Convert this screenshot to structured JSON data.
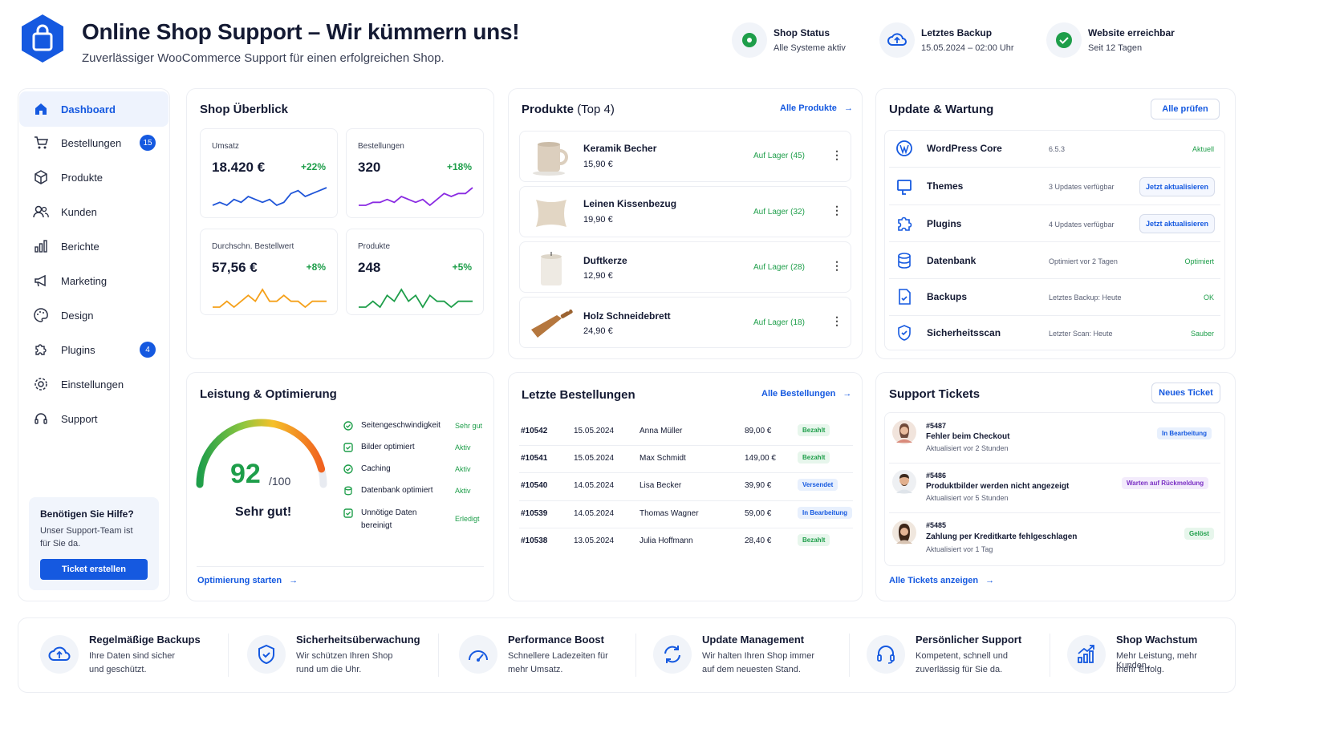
{
  "header": {
    "title": "Online Shop Support – Wir kümmern uns!",
    "subtitle": "Zuverlässiger WooCommerce Support für einen erfolgreichen Shop.",
    "status": [
      {
        "title": "Shop Status",
        "text": "Alle Systeme aktiv",
        "icon": "check-dot-icon"
      },
      {
        "title": "Letztes Backup",
        "text": "15.05.2024 – 02:00 Uhr",
        "icon": "cloud-icon"
      },
      {
        "title": "Website erreichbar",
        "text": "Seit 12 Tagen",
        "icon": "check-circle-icon"
      }
    ]
  },
  "sidebar": {
    "items": [
      {
        "label": "Dashboard",
        "icon": "home-icon",
        "active": true
      },
      {
        "label": "Bestellungen",
        "icon": "cart-icon",
        "badge": "15"
      },
      {
        "label": "Produkte",
        "icon": "box-icon"
      },
      {
        "label": "Kunden",
        "icon": "users-icon"
      },
      {
        "label": "Berichte",
        "icon": "bar-chart-icon"
      },
      {
        "label": "Marketing",
        "icon": "megaphone-icon"
      },
      {
        "label": "Design",
        "icon": "palette-icon"
      },
      {
        "label": "Plugins",
        "icon": "puzzle-icon",
        "badge": "4"
      },
      {
        "label": "Einstellungen",
        "icon": "gear-icon"
      },
      {
        "label": "Support",
        "icon": "headset-icon"
      }
    ],
    "help": {
      "title": "Benötigen Sie Hilfe?",
      "text1": "Unser Support-Team ist",
      "text2": "für Sie da.",
      "button": "Ticket erstellen"
    }
  },
  "overview": {
    "title": "Shop Überblick",
    "kpis": [
      {
        "label": "Umsatz",
        "value": "18.420 €",
        "delta": "+22%",
        "color": "#1f55d8",
        "trend": [
          4,
          5,
          4,
          6,
          5,
          7,
          6,
          5,
          6,
          4,
          5,
          8,
          9,
          7,
          8,
          9,
          10
        ]
      },
      {
        "label": "Bestellungen",
        "value": "320",
        "delta": "+18%",
        "color": "#8a2be2",
        "trend": [
          4,
          4,
          5,
          5,
          6,
          5,
          7,
          6,
          5,
          6,
          4,
          6,
          8,
          7,
          8,
          8,
          10
        ]
      },
      {
        "label": "Durchschn. Bestellwert",
        "value": "57,56 €",
        "delta": "+8%",
        "color": "#f5a019",
        "trend": [
          5,
          5,
          6,
          5,
          6,
          7,
          6,
          8,
          6,
          6,
          7,
          6,
          6,
          5,
          6,
          6,
          6
        ]
      },
      {
        "label": "Produkte",
        "value": "248",
        "delta": "+5%",
        "color": "#1e9e4a",
        "trend": [
          5,
          5,
          6,
          5,
          7,
          6,
          8,
          6,
          7,
          5,
          7,
          6,
          6,
          5,
          6,
          6,
          6
        ]
      }
    ]
  },
  "products": {
    "title": "Produkte",
    "title_suffix": "(Top 4)",
    "link": "Alle Produkte",
    "items": [
      {
        "name": "Keramik Becher",
        "price": "15,90 €",
        "stock": "Auf Lager (45)"
      },
      {
        "name": "Leinen Kissenbezug",
        "price": "19,90 €",
        "stock": "Auf Lager (32)"
      },
      {
        "name": "Duftkerze",
        "price": "12,90 €",
        "stock": "Auf Lager (28)"
      },
      {
        "name": "Holz Schneidebrett",
        "price": "24,90 €",
        "stock": "Auf Lager (18)"
      }
    ]
  },
  "maintenance": {
    "title": "Update & Wartung",
    "button": "Alle prüfen",
    "items": [
      {
        "name": "WordPress Core",
        "info": "6.5.3",
        "status": "Aktuell",
        "action": ""
      },
      {
        "name": "Themes",
        "info": "3 Updates verfügbar",
        "status": "",
        "action": "Jetzt aktualisieren"
      },
      {
        "name": "Plugins",
        "info": "4 Updates verfügbar",
        "status": "",
        "action": "Jetzt aktualisieren"
      },
      {
        "name": "Datenbank",
        "info": "Optimiert vor 2 Tagen",
        "status": "Optimiert",
        "action": ""
      },
      {
        "name": "Backups",
        "info": "Letztes Backup: Heute",
        "status": "OK",
        "action": ""
      },
      {
        "name": "Sicherheitsscan",
        "info": "Letzter Scan: Heute",
        "status": "Sauber",
        "action": ""
      }
    ]
  },
  "performance": {
    "title": "Leistung & Optimierung",
    "score": "92",
    "score_max": "/100",
    "score_fraction": 0.92,
    "verdict": "Sehr gut!",
    "items": [
      {
        "label": "Seitengeschwindigkeit",
        "status": "Sehr gut"
      },
      {
        "label": "Bilder optimiert",
        "status": "Aktiv"
      },
      {
        "label": "Caching",
        "status": "Aktiv"
      },
      {
        "label": "Datenbank optimiert",
        "status": "Aktiv"
      },
      {
        "label": "Unnötige Daten",
        "label2": "bereinigt",
        "status": "Erledigt"
      }
    ],
    "link": "Optimierung starten"
  },
  "orders": {
    "title": "Letzte Bestellungen",
    "link": "Alle Bestellungen",
    "rows": [
      {
        "id": "#10542",
        "date": "15.05.2024",
        "name": "Anna Müller",
        "amount": "89,00 €",
        "status": "Bezahlt",
        "kind": "green"
      },
      {
        "id": "#10541",
        "date": "15.05.2024",
        "name": "Max Schmidt",
        "amount": "149,00 €",
        "status": "Bezahlt",
        "kind": "green"
      },
      {
        "id": "#10540",
        "date": "14.05.2024",
        "name": "Lisa Becker",
        "amount": "39,90 €",
        "status": "Versendet",
        "kind": "blue"
      },
      {
        "id": "#10539",
        "date": "14.05.2024",
        "name": "Thomas Wagner",
        "amount": "59,00 €",
        "status": "In Bearbeitung",
        "kind": "blue"
      },
      {
        "id": "#10538",
        "date": "13.05.2024",
        "name": "Julia Hoffmann",
        "amount": "28,40 €",
        "status": "Bezahlt",
        "kind": "green"
      }
    ]
  },
  "tickets": {
    "title": "Support Tickets",
    "button": "Neues Ticket",
    "items": [
      {
        "id": "#5487",
        "subject": "Fehler beim Checkout",
        "updated": "Aktualisiert vor 2 Stunden",
        "status": "In Bearbeitung",
        "kind": "blue"
      },
      {
        "id": "#5486",
        "subject": "Produktbilder werden nicht angezeigt",
        "updated": "Aktualisiert vor 5 Stunden",
        "status": "Warten auf Rückmeldung",
        "kind": "purple"
      },
      {
        "id": "#5485",
        "subject": "Zahlung per Kreditkarte fehlgeschlagen",
        "updated": "Aktualisiert vor 1 Tag",
        "status": "Gelöst",
        "kind": "green"
      }
    ],
    "link": "Alle Tickets anzeigen"
  },
  "features": [
    {
      "title": "Regelmäßige Backups",
      "l1": "Ihre Daten sind sicher",
      "l2": "und geschützt.",
      "icon": "cloud-upload-icon"
    },
    {
      "title": "Sicherheitsüberwachung",
      "l1": "Wir schützen Ihren Shop",
      "l2": "rund um die Uhr.",
      "icon": "shield-check-icon"
    },
    {
      "title": "Performance Boost",
      "l1": "Schnellere Ladezeiten für",
      "l2": "mehr Umsatz.",
      "icon": "speedometer-icon"
    },
    {
      "title": "Update Management",
      "l1": "Wir halten Ihren Shop immer",
      "l2": "auf dem neuesten Stand.",
      "icon": "refresh-icon"
    },
    {
      "title": "Persönlicher Support",
      "l1": "Kompetent, schnell und",
      "l2": "zuverlässig für Sie da.",
      "icon": "headset-icon"
    },
    {
      "title": "Shop Wachstum",
      "l1": "Mehr Leistung, mehr Kunden,",
      "l2": "mehr Erfolg.",
      "icon": "growth-chart-icon"
    }
  ]
}
